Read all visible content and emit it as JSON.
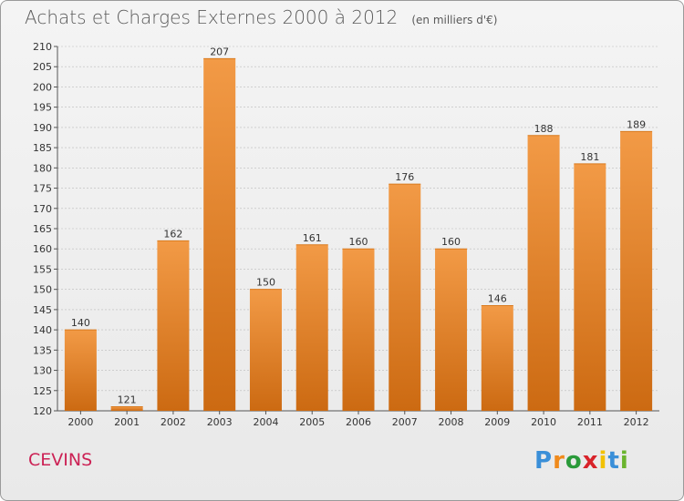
{
  "title": "Achats et Charges Externes 2000 à 2012",
  "unit_note": "(en milliers d'€)",
  "location": "CEVINS",
  "brand": {
    "letters": [
      "P",
      "r",
      "o",
      "x",
      "i",
      "t",
      "i"
    ],
    "colors": [
      "#3a8fd8",
      "#f08a1c",
      "#2a9a3a",
      "#d8232a",
      "#f2c100",
      "#3a8fd8",
      "#6ab42d"
    ]
  },
  "colors": {
    "bar": "#f29a46",
    "bar_dark": "#cc6a12",
    "label": "#333333",
    "grid": "#bbbbbb"
  },
  "chart_data": {
    "type": "bar",
    "title": "Achats et Charges Externes 2000 à 2012",
    "subtitle": "(en milliers d'€)",
    "categories": [
      "2000",
      "2001",
      "2002",
      "2003",
      "2004",
      "2005",
      "2006",
      "2007",
      "2008",
      "2009",
      "2010",
      "2011",
      "2012"
    ],
    "values": [
      140,
      121,
      162,
      207,
      150,
      161,
      160,
      176,
      160,
      146,
      188,
      181,
      189
    ],
    "ylim": [
      120,
      210
    ],
    "yticks": [
      120,
      125,
      130,
      135,
      140,
      145,
      150,
      155,
      160,
      165,
      170,
      175,
      180,
      185,
      190,
      195,
      200,
      205,
      210
    ],
    "xlabel": "",
    "ylabel": "",
    "grid": true,
    "data_labels": true
  }
}
